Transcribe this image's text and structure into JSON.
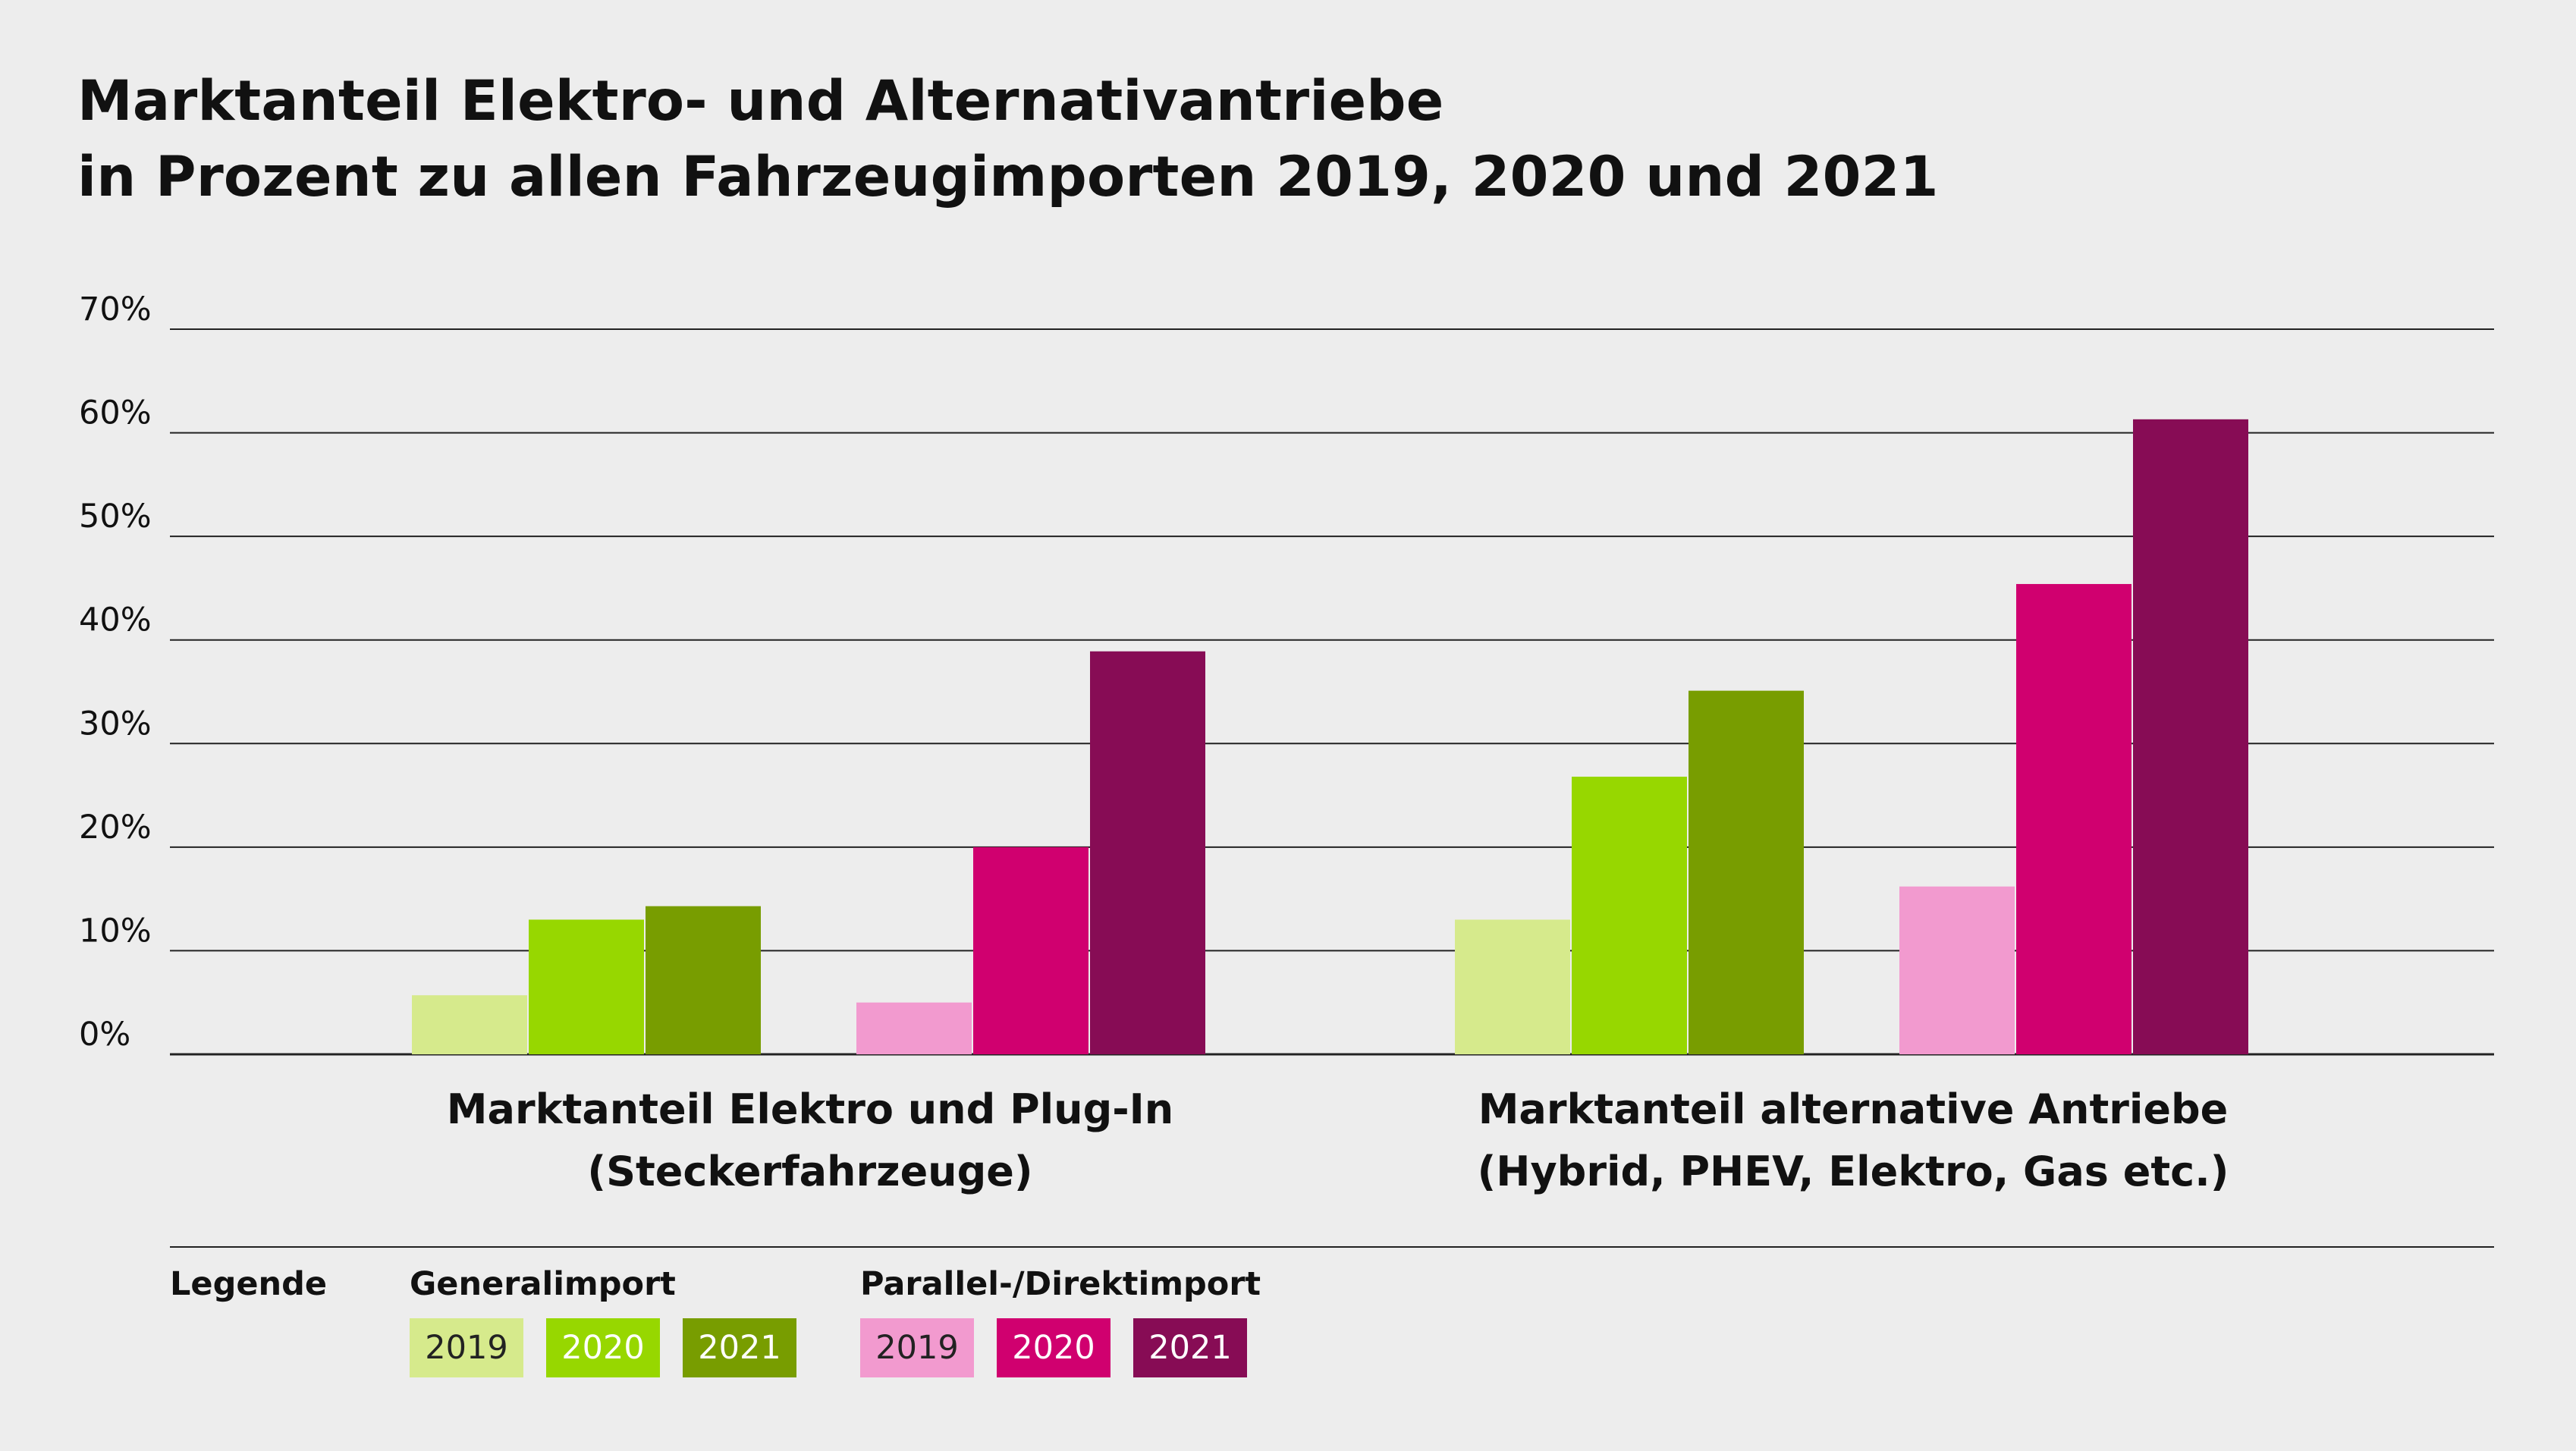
{
  "title": {
    "line1": "Marktanteil Elektro- und Alternativantriebe",
    "line2": "in Prozent zu allen Fahrzeugimporten 2019, 2020 und 2021"
  },
  "chart_data": {
    "type": "bar",
    "ylim": [
      0,
      70
    ],
    "yticks": [
      "0%",
      "10%",
      "20%",
      "30%",
      "40%",
      "50%",
      "60%",
      "70%"
    ],
    "grid": true,
    "categories": [
      {
        "line1": "Marktanteil Elektro und Plug-In",
        "line2": "(Steckerfahrzeuge)"
      },
      {
        "line1": "Marktanteil alternative Antriebe",
        "line2": "(Hybrid, PHEV, Elektro, Gas etc.)"
      }
    ],
    "groups": [
      {
        "name": "Generalimport",
        "series": [
          {
            "name": "2019",
            "color": "#d6ea8c",
            "values": [
              5.7,
              13.0
            ]
          },
          {
            "name": "2020",
            "color": "#97d700",
            "values": [
              13.0,
              26.8
            ]
          },
          {
            "name": "2021",
            "color": "#789d00",
            "values": [
              14.3,
              35.1
            ]
          }
        ]
      },
      {
        "name": "Parallel-/Direktimport",
        "series": [
          {
            "name": "2019",
            "color": "#f29acf",
            "values": [
              5.0,
              16.2
            ]
          },
          {
            "name": "2020",
            "color": "#d0006f",
            "values": [
              20.0,
              45.4
            ]
          },
          {
            "name": "2021",
            "color": "#870c55",
            "values": [
              38.9,
              61.3
            ]
          }
        ]
      }
    ]
  },
  "legend": {
    "label": "Legende",
    "generalimport": {
      "title": "Generalimport",
      "items": [
        {
          "label": "2019",
          "color": "#d6ea8c",
          "text_color": "#222222"
        },
        {
          "label": "2020",
          "color": "#97d700",
          "text_color": "#ffffff"
        },
        {
          "label": "2021",
          "color": "#789d00",
          "text_color": "#ffffff"
        }
      ]
    },
    "parallelimport": {
      "title": "Parallel-/Direktimport",
      "items": [
        {
          "label": "2019",
          "color": "#f29acf",
          "text_color": "#222222"
        },
        {
          "label": "2020",
          "color": "#d0006f",
          "text_color": "#ffffff"
        },
        {
          "label": "2021",
          "color": "#870c55",
          "text_color": "#ffffff"
        }
      ]
    }
  }
}
